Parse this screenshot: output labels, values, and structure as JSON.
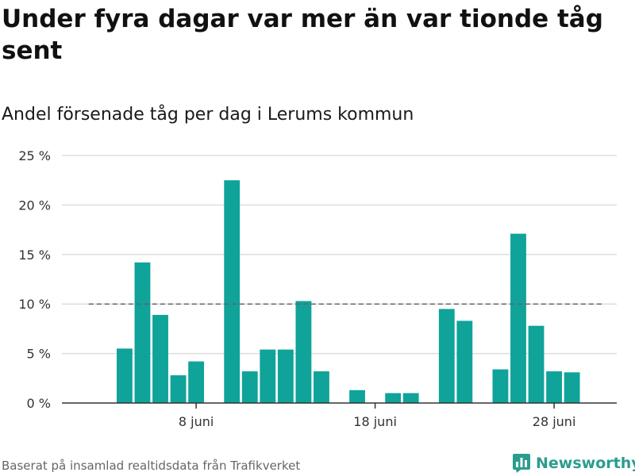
{
  "title": "Under fyra dagar var mer än var tionde tåg sent",
  "subtitle": "Andel försenade tåg per dag i Lerums kommun",
  "source": "Baserat på insamlad realtidsdata från Trafikverket",
  "brand": "Newsworthy",
  "colors": {
    "bar": "#0fa39a",
    "grid": "#dddddd",
    "axis": "#333333",
    "reference": "#666666",
    "brand": "#2a9d8f"
  },
  "chart_data": {
    "type": "bar",
    "title": "Andel försenade tåg per dag i Lerums kommun",
    "xlabel": "",
    "ylabel": "",
    "ylim": [
      0,
      25
    ],
    "y_ticks": [
      0,
      5,
      10,
      15,
      20,
      25
    ],
    "y_tick_labels": [
      "0 %",
      "5 %",
      "10 %",
      "15 %",
      "20 %",
      "25 %"
    ],
    "x_ticks": [
      {
        "day": 8,
        "label": "8 juni"
      },
      {
        "day": 18,
        "label": "18 juni"
      },
      {
        "day": 28,
        "label": "28 juni"
      }
    ],
    "x_range_days": [
      0.5,
      31.5
    ],
    "reference_line": {
      "value": 10,
      "from_day": 2,
      "to_day": 30.8,
      "style": "dashed"
    },
    "series": [
      {
        "name": "Andel försenade tåg",
        "days": [
          4,
          5,
          6,
          7,
          8,
          10,
          11,
          12,
          13,
          14,
          15,
          17,
          19,
          20,
          22,
          23,
          25,
          26,
          27,
          28,
          29
        ],
        "values": [
          5.5,
          14.2,
          8.9,
          2.8,
          4.2,
          22.5,
          3.2,
          5.4,
          5.4,
          10.3,
          3.2,
          1.3,
          1.0,
          1.0,
          9.5,
          8.3,
          3.4,
          17.1,
          7.8,
          3.2,
          3.1
        ]
      }
    ]
  }
}
